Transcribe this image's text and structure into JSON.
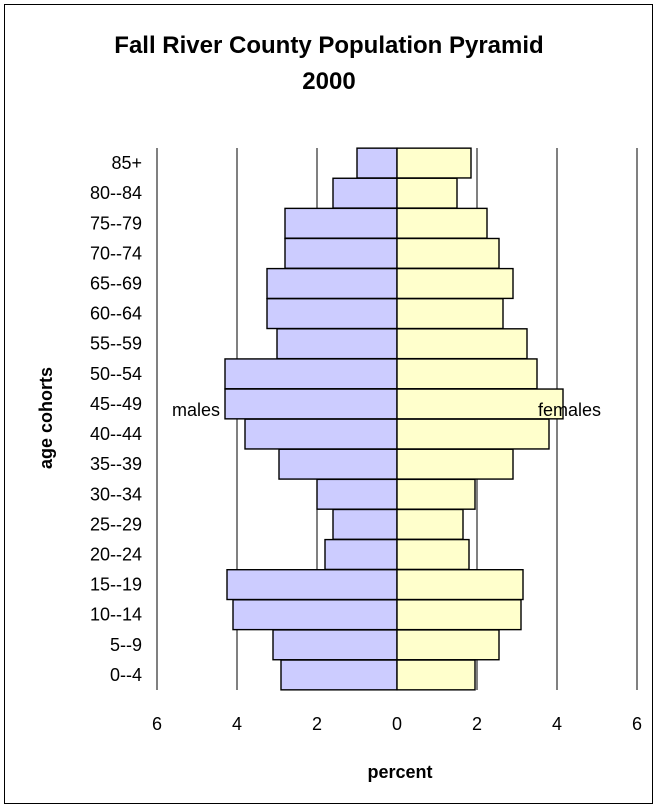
{
  "chart_data": {
    "type": "bar",
    "orientation": "horizontal",
    "title_line1": "Fall River County Population Pyramid",
    "title_line2": "2000",
    "xlabel": "percent",
    "ylabel": "age cohorts",
    "xlim": [
      -6,
      6
    ],
    "xticks": [
      -6,
      -4,
      -2,
      0,
      2,
      4,
      6
    ],
    "xtick_labels": [
      "6",
      "4",
      "2",
      "0",
      "2",
      "4",
      "6"
    ],
    "grid": "vertical",
    "categories": [
      "85+",
      "80--84",
      "75--79",
      "70--74",
      "65--69",
      "60--64",
      "55--59",
      "50--54",
      "45--49",
      "40--44",
      "35--39",
      "30--34",
      "25--29",
      "20--24",
      "15--19",
      "10--14",
      "5--9",
      "0--4"
    ],
    "series": [
      {
        "name": "males",
        "color": "#ccccff",
        "values": [
          1.0,
          1.6,
          2.8,
          2.8,
          3.25,
          3.25,
          3.0,
          4.3,
          4.3,
          3.8,
          2.95,
          2.0,
          1.6,
          1.8,
          4.25,
          4.1,
          3.1,
          2.9
        ]
      },
      {
        "name": "females",
        "color": "#ffffcc",
        "values": [
          1.85,
          1.5,
          2.25,
          2.55,
          2.9,
          2.65,
          3.25,
          3.5,
          4.15,
          3.8,
          2.9,
          1.95,
          1.65,
          1.8,
          3.15,
          3.1,
          2.55,
          1.95
        ]
      }
    ],
    "annotations": [
      "males",
      "females"
    ]
  }
}
